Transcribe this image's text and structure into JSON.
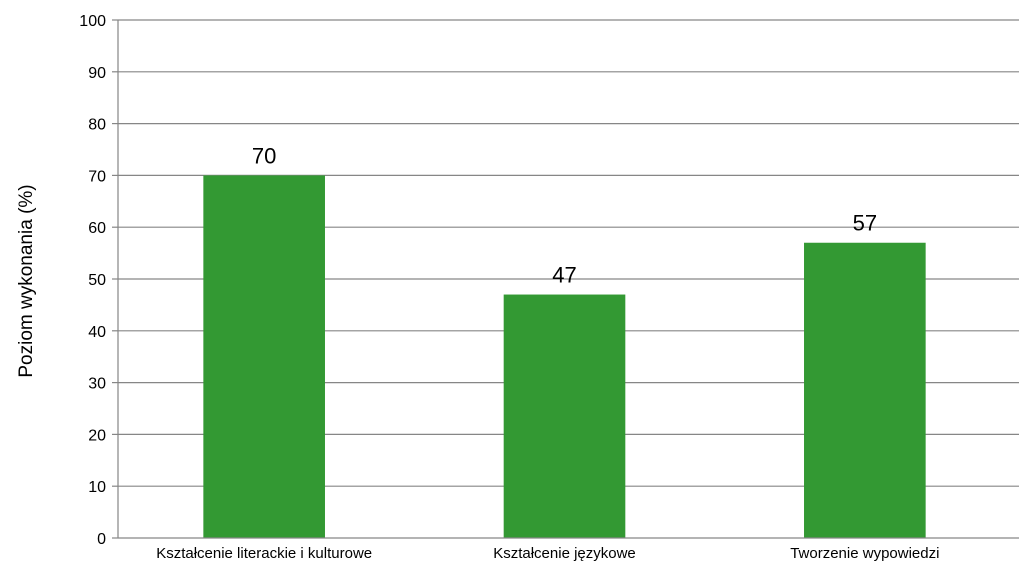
{
  "chart_data": {
    "type": "bar",
    "title": "",
    "xlabel": "",
    "ylabel": "Poziom wykonania (%)",
    "ylim": [
      0,
      100
    ],
    "yticks": [
      0,
      10,
      20,
      30,
      40,
      50,
      60,
      70,
      80,
      90,
      100
    ],
    "grid": true,
    "legend": "none",
    "categories": [
      "Kształcenie literackie i kulturowe",
      "Kształcenie językowe",
      "Tworzenie wypowiedzi"
    ],
    "values": [
      70,
      47,
      57
    ],
    "value_labels": [
      "70",
      "47",
      "57"
    ],
    "bar_color": "#339933",
    "grid_color": "#868686",
    "axis_color": "#868686"
  }
}
